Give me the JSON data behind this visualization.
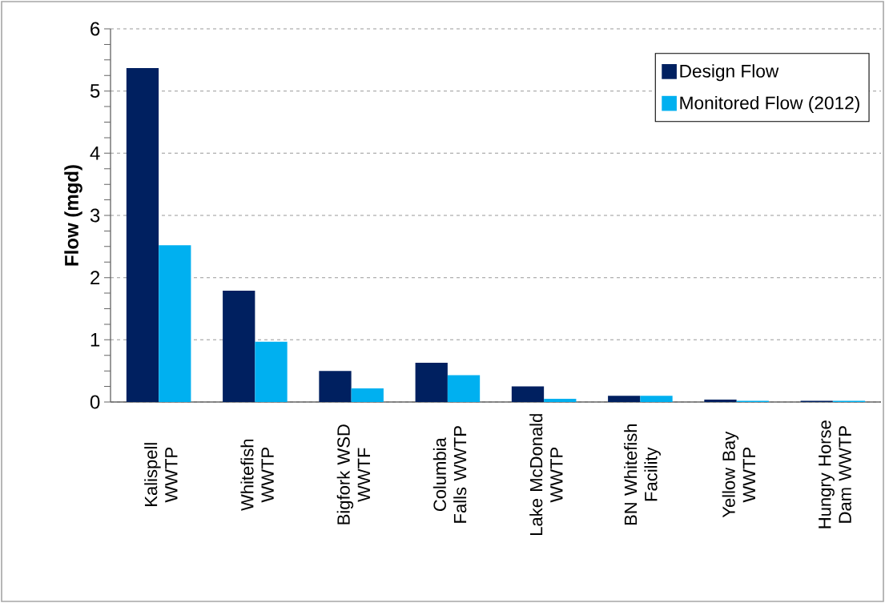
{
  "chart_data": {
    "type": "bar",
    "ylabel": "Flow (mgd)",
    "categories": [
      "Kalispell WWTP",
      "Whitefish WWTP",
      "Bigfork WSD WWTF",
      "Columbia Falls WWTP",
      "Lake McDonald WWTP",
      "BN Whitefish Facility",
      "Yellow Bay WWTP",
      "Hungry Horse Dam WWTP"
    ],
    "series": [
      {
        "name": "Design Flow",
        "color": "#002060",
        "values": [
          5.37,
          1.79,
          0.5,
          0.63,
          0.25,
          0.1,
          0.04,
          0.02
        ]
      },
      {
        "name": "Monitored Flow (2012)",
        "color": "#00b0f0",
        "values": [
          2.52,
          0.97,
          0.22,
          0.43,
          0.05,
          0.1,
          0.02,
          0.02
        ]
      }
    ],
    "ylim": [
      0,
      6
    ],
    "yticks": [
      0,
      1,
      2,
      3,
      4,
      5,
      6
    ],
    "grid": "y",
    "legend": "top right"
  }
}
